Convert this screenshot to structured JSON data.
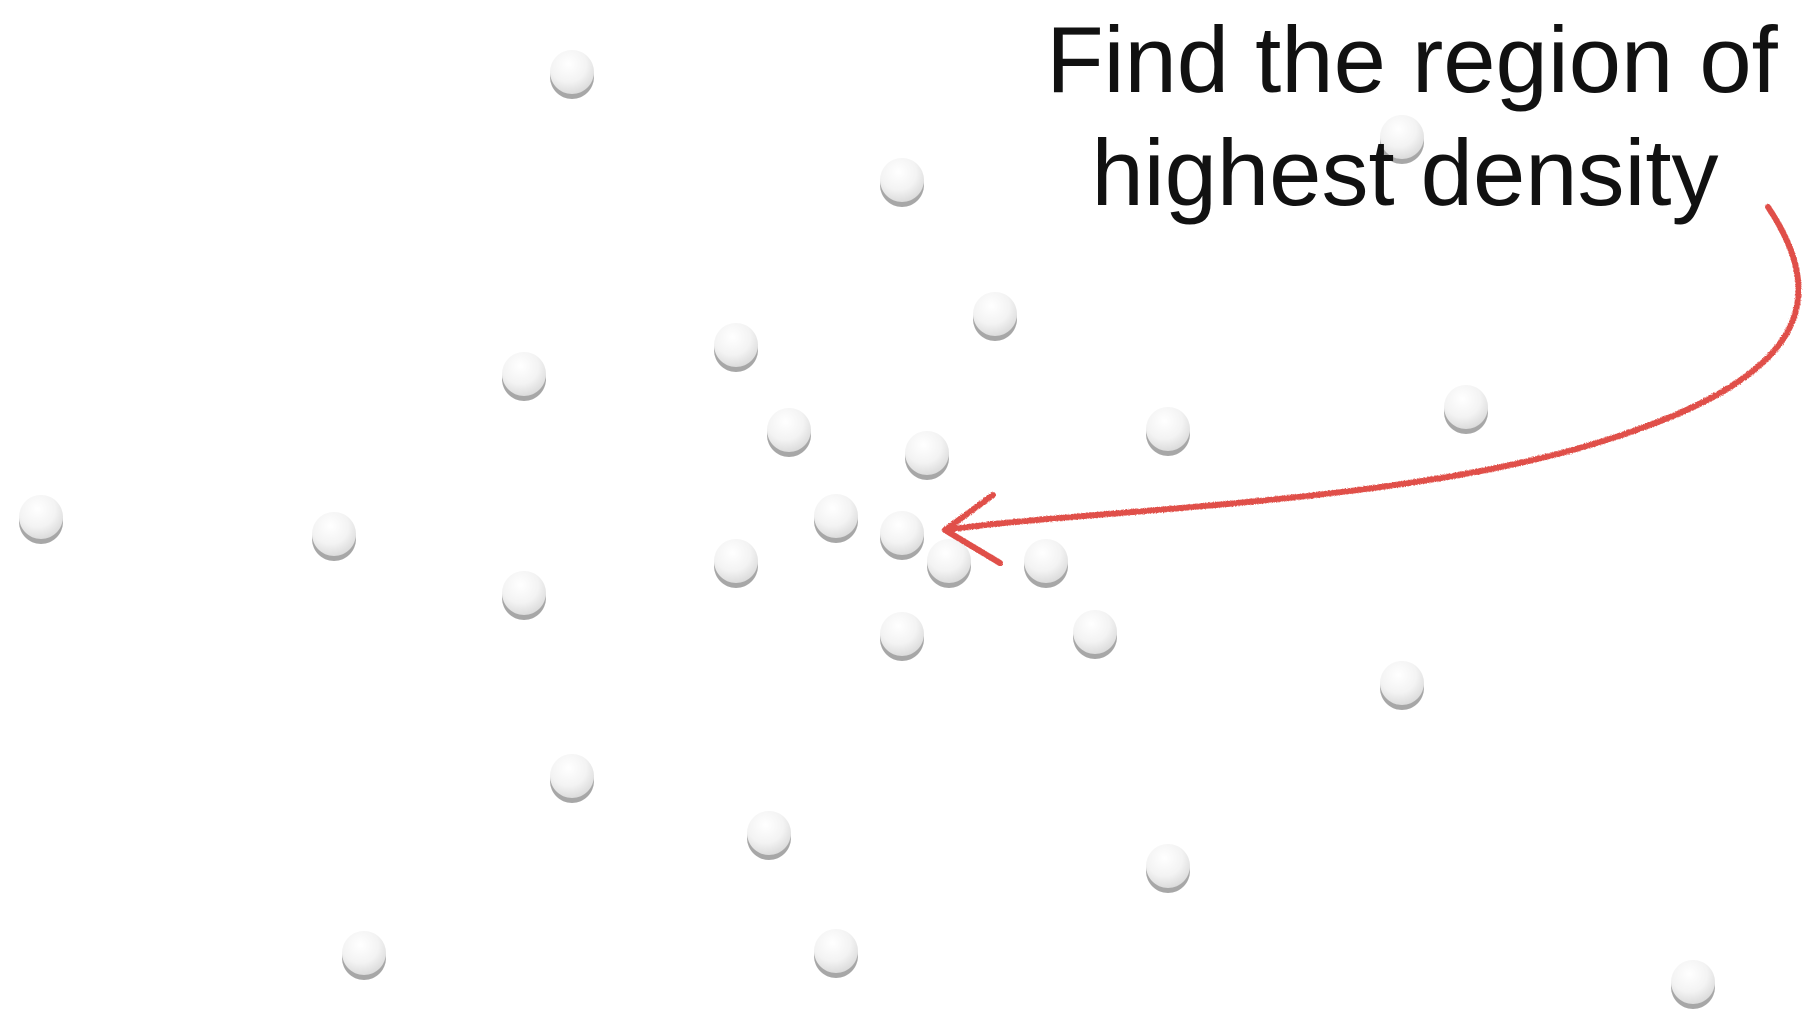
{
  "annotation": {
    "line1": "Find the region of",
    "line2": "highest density"
  },
  "colors": {
    "point_fill": "#f4f4f4",
    "point_shadow": "#8a8a8a",
    "arrow": "#e0504a",
    "text": "#111111"
  }
}
